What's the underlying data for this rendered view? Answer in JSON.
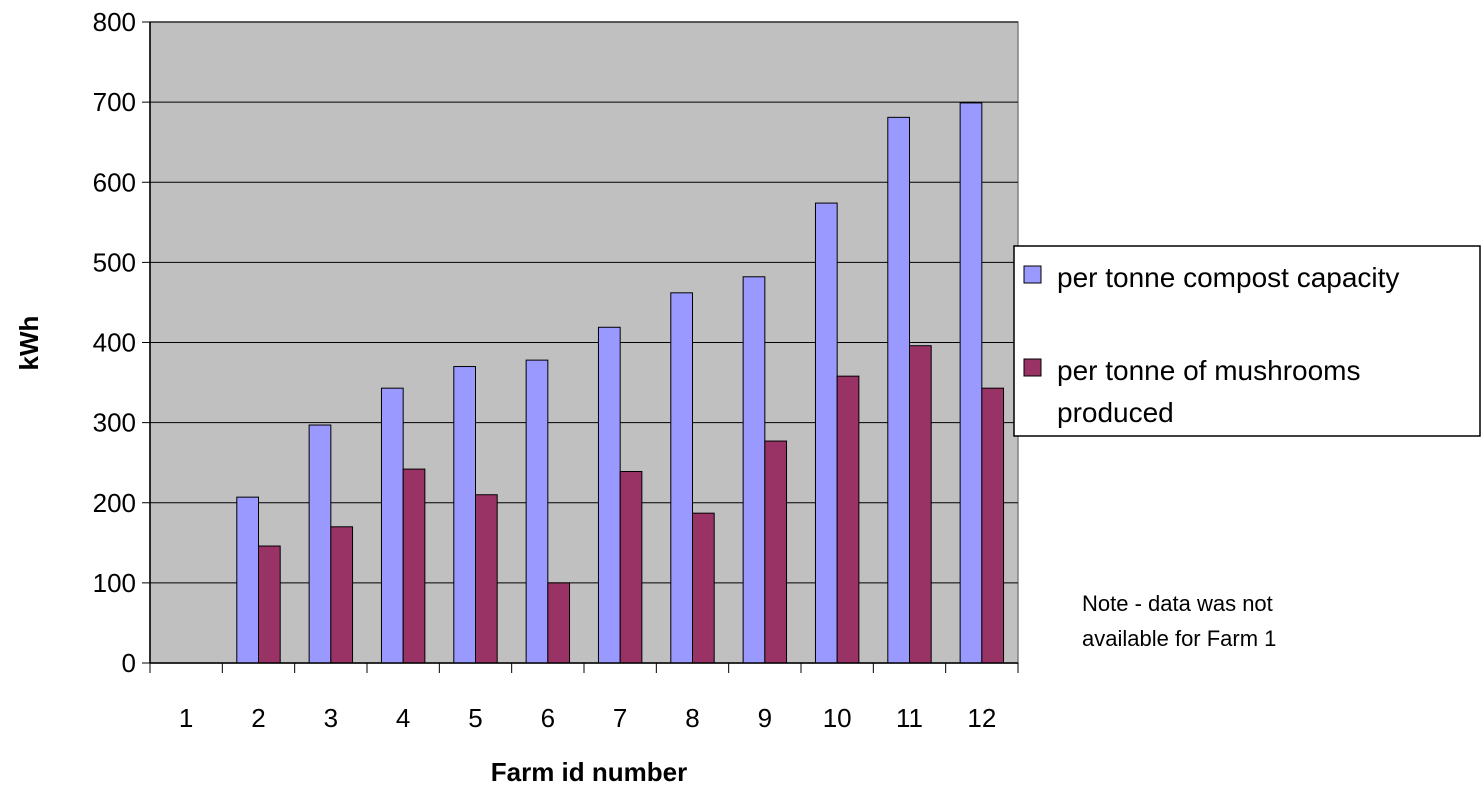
{
  "chart_data": {
    "type": "bar",
    "title": "",
    "xlabel": "Farm id number",
    "ylabel": "kWh",
    "ylim": [
      0,
      800
    ],
    "yticks": [
      0,
      100,
      200,
      300,
      400,
      500,
      600,
      700,
      800
    ],
    "categories": [
      "1",
      "2",
      "3",
      "4",
      "5",
      "6",
      "7",
      "8",
      "9",
      "10",
      "11",
      "12"
    ],
    "series": [
      {
        "name": "per tonne compost capacity",
        "color": "#9999FF",
        "values": [
          null,
          207,
          297,
          343,
          370,
          378,
          419,
          462,
          482,
          574,
          681,
          699
        ]
      },
      {
        "name": "per tonne of mushrooms produced",
        "color": "#993366",
        "values": [
          null,
          146,
          170,
          242,
          210,
          100,
          239,
          187,
          277,
          358,
          396,
          343
        ]
      }
    ],
    "grid": "horizontal",
    "plot_background": "#C0C0C0",
    "legend_position": "right",
    "legend_lines": [
      [
        "per tonne compost capacity"
      ],
      [
        "per tonne of mushrooms",
        "produced"
      ]
    ],
    "annotation_lines": [
      "Note - data was not",
      "available for Farm 1"
    ]
  }
}
